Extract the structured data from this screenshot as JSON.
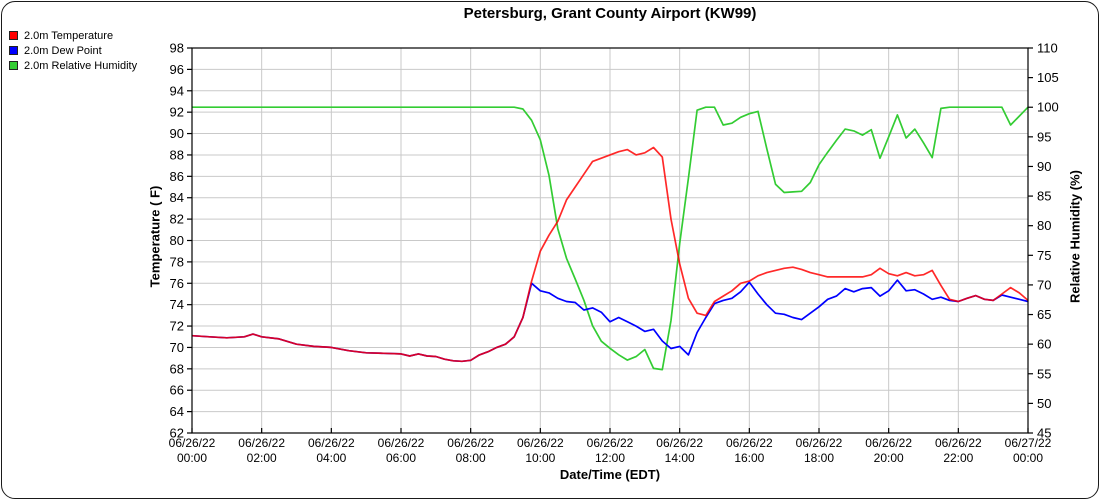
{
  "window": {
    "title": "Petersburg, Grant County Airport (KW99)"
  },
  "axes": {
    "x_title": "Date/Time (EDT)",
    "y_left_title": "Temperature ( F)",
    "y_right_title": "Relative Humidity (%)"
  },
  "chart_data": {
    "type": "line",
    "title": "Petersburg, Grant County Airport (KW99)",
    "xlabel": "Date/Time (EDT)",
    "ylabel_left": "Temperature ( F)",
    "ylabel_right": "Relative Humidity (%)",
    "y_left_range": [
      62,
      98
    ],
    "y_left_ticks": [
      98,
      96,
      94,
      92,
      90,
      88,
      86,
      84,
      82,
      80,
      78,
      76,
      74,
      72,
      70,
      68,
      66,
      64,
      62
    ],
    "y_right_range": [
      45,
      110
    ],
    "y_right_ticks": [
      110,
      105,
      100,
      95,
      90,
      85,
      80,
      75,
      70,
      65,
      60,
      55,
      50,
      45
    ],
    "x_range_hours": [
      0,
      24
    ],
    "x_ticks": [
      {
        "date": "06/26/22",
        "time": "00:00"
      },
      {
        "date": "06/26/22",
        "time": "02:00"
      },
      {
        "date": "06/26/22",
        "time": "04:00"
      },
      {
        "date": "06/26/22",
        "time": "06:00"
      },
      {
        "date": "06/26/22",
        "time": "08:00"
      },
      {
        "date": "06/26/22",
        "time": "10:00"
      },
      {
        "date": "06/26/22",
        "time": "12:00"
      },
      {
        "date": "06/26/22",
        "time": "14:00"
      },
      {
        "date": "06/26/22",
        "time": "16:00"
      },
      {
        "date": "06/26/22",
        "time": "18:00"
      },
      {
        "date": "06/26/22",
        "time": "20:00"
      },
      {
        "date": "06/26/22",
        "time": "22:00"
      },
      {
        "date": "06/27/22",
        "time": "00:00"
      }
    ],
    "grid": true,
    "gridline_color": "#c9c9c9",
    "x_hours": [
      0,
      0.5,
      1,
      1.5,
      1.75,
      2,
      2.5,
      3,
      3.5,
      4,
      4.5,
      5,
      5.5,
      6,
      6.25,
      6.5,
      6.75,
      7,
      7.25,
      7.5,
      7.75,
      8,
      8.25,
      8.5,
      8.75,
      9,
      9.25,
      9.5,
      9.75,
      10,
      10.25,
      10.5,
      10.75,
      11,
      11.25,
      11.5,
      11.75,
      12,
      12.25,
      12.5,
      12.75,
      13,
      13.25,
      13.5,
      13.75,
      14,
      14.25,
      14.5,
      14.75,
      15,
      15.25,
      15.5,
      15.75,
      16,
      16.25,
      16.5,
      16.75,
      17,
      17.25,
      17.5,
      17.75,
      18,
      18.25,
      18.5,
      18.75,
      19,
      19.25,
      19.5,
      19.75,
      20,
      20.25,
      20.5,
      20.75,
      21,
      21.25,
      21.5,
      21.75,
      22,
      22.25,
      22.5,
      22.75,
      23,
      23.25,
      23.5,
      23.75,
      24
    ],
    "series": [
      {
        "name": "2.0m Temperature",
        "color": "#ff0000",
        "axis": "left",
        "values": [
          71.1,
          71.0,
          70.9,
          71.0,
          71.25,
          71.0,
          70.8,
          70.3,
          70.1,
          70.0,
          69.7,
          69.5,
          69.45,
          69.4,
          69.2,
          69.4,
          69.2,
          69.15,
          68.9,
          68.75,
          68.7,
          68.8,
          69.3,
          69.6,
          70.0,
          70.3,
          71.0,
          72.8,
          76.2,
          79.0,
          80.5,
          81.8,
          83.8,
          85.0,
          86.2,
          87.4,
          87.7,
          88.0,
          88.3,
          88.5,
          88.0,
          88.2,
          88.7,
          87.8,
          82.0,
          77.8,
          74.6,
          73.2,
          73.0,
          74.3,
          74.8,
          75.3,
          76.0,
          76.2,
          76.7,
          77.0,
          77.2,
          77.4,
          77.5,
          77.3,
          77.0,
          76.8,
          76.6,
          76.6,
          76.6,
          76.6,
          76.6,
          76.8,
          77.4,
          76.9,
          76.7,
          77.0,
          76.7,
          76.8,
          77.2,
          75.8,
          74.5,
          74.3,
          74.6,
          74.85,
          74.5,
          74.4,
          75.0,
          75.6,
          75.1,
          74.4
        ]
      },
      {
        "name": "2.0m Dew Point",
        "color": "#0000ff",
        "axis": "left",
        "values": [
          71.1,
          71.0,
          70.9,
          71.0,
          71.25,
          71.0,
          70.8,
          70.3,
          70.1,
          70.0,
          69.7,
          69.5,
          69.45,
          69.4,
          69.2,
          69.4,
          69.2,
          69.15,
          68.9,
          68.75,
          68.7,
          68.8,
          69.3,
          69.6,
          70.0,
          70.3,
          71.0,
          72.8,
          76.0,
          75.3,
          75.1,
          74.6,
          74.3,
          74.2,
          73.5,
          73.7,
          73.3,
          72.4,
          72.8,
          72.4,
          72.0,
          71.5,
          71.7,
          70.6,
          69.9,
          70.1,
          69.3,
          71.4,
          72.8,
          74.1,
          74.4,
          74.6,
          75.2,
          76.1,
          75.0,
          74.0,
          73.2,
          73.1,
          72.8,
          72.6,
          73.2,
          73.8,
          74.5,
          74.8,
          75.5,
          75.2,
          75.5,
          75.6,
          74.8,
          75.3,
          76.3,
          75.3,
          75.4,
          75.0,
          74.5,
          74.7,
          74.4,
          74.3,
          74.6,
          74.85,
          74.5,
          74.4,
          74.9,
          74.7,
          74.5,
          74.3
        ]
      },
      {
        "name": "2.0m Relative Humidity",
        "color": "#33cc33",
        "axis": "right",
        "values": [
          100,
          100,
          100,
          100,
          100,
          100,
          100,
          100,
          100,
          100,
          100,
          100,
          100,
          100,
          100,
          100,
          100,
          100,
          100,
          100,
          100,
          100,
          100,
          100,
          100,
          100,
          100,
          99.7,
          97.8,
          94.5,
          88.5,
          79.5,
          74.5,
          71.0,
          67.4,
          63.1,
          60.5,
          59.3,
          58.2,
          57.3,
          57.9,
          59.1,
          55.9,
          55.7,
          64.0,
          77.0,
          88.0,
          99.5,
          100,
          100,
          97.0,
          97.3,
          98.3,
          98.9,
          99.3,
          93.0,
          87.0,
          85.6,
          85.7,
          85.8,
          87.3,
          90.3,
          92.4,
          94.4,
          96.3,
          96.0,
          95.3,
          96.2,
          91.4,
          95.0,
          98.7,
          94.8,
          96.3,
          94.0,
          91.5,
          99.8,
          100,
          100,
          100,
          100,
          100,
          100,
          100,
          97.0,
          98.5,
          100
        ]
      }
    ]
  }
}
